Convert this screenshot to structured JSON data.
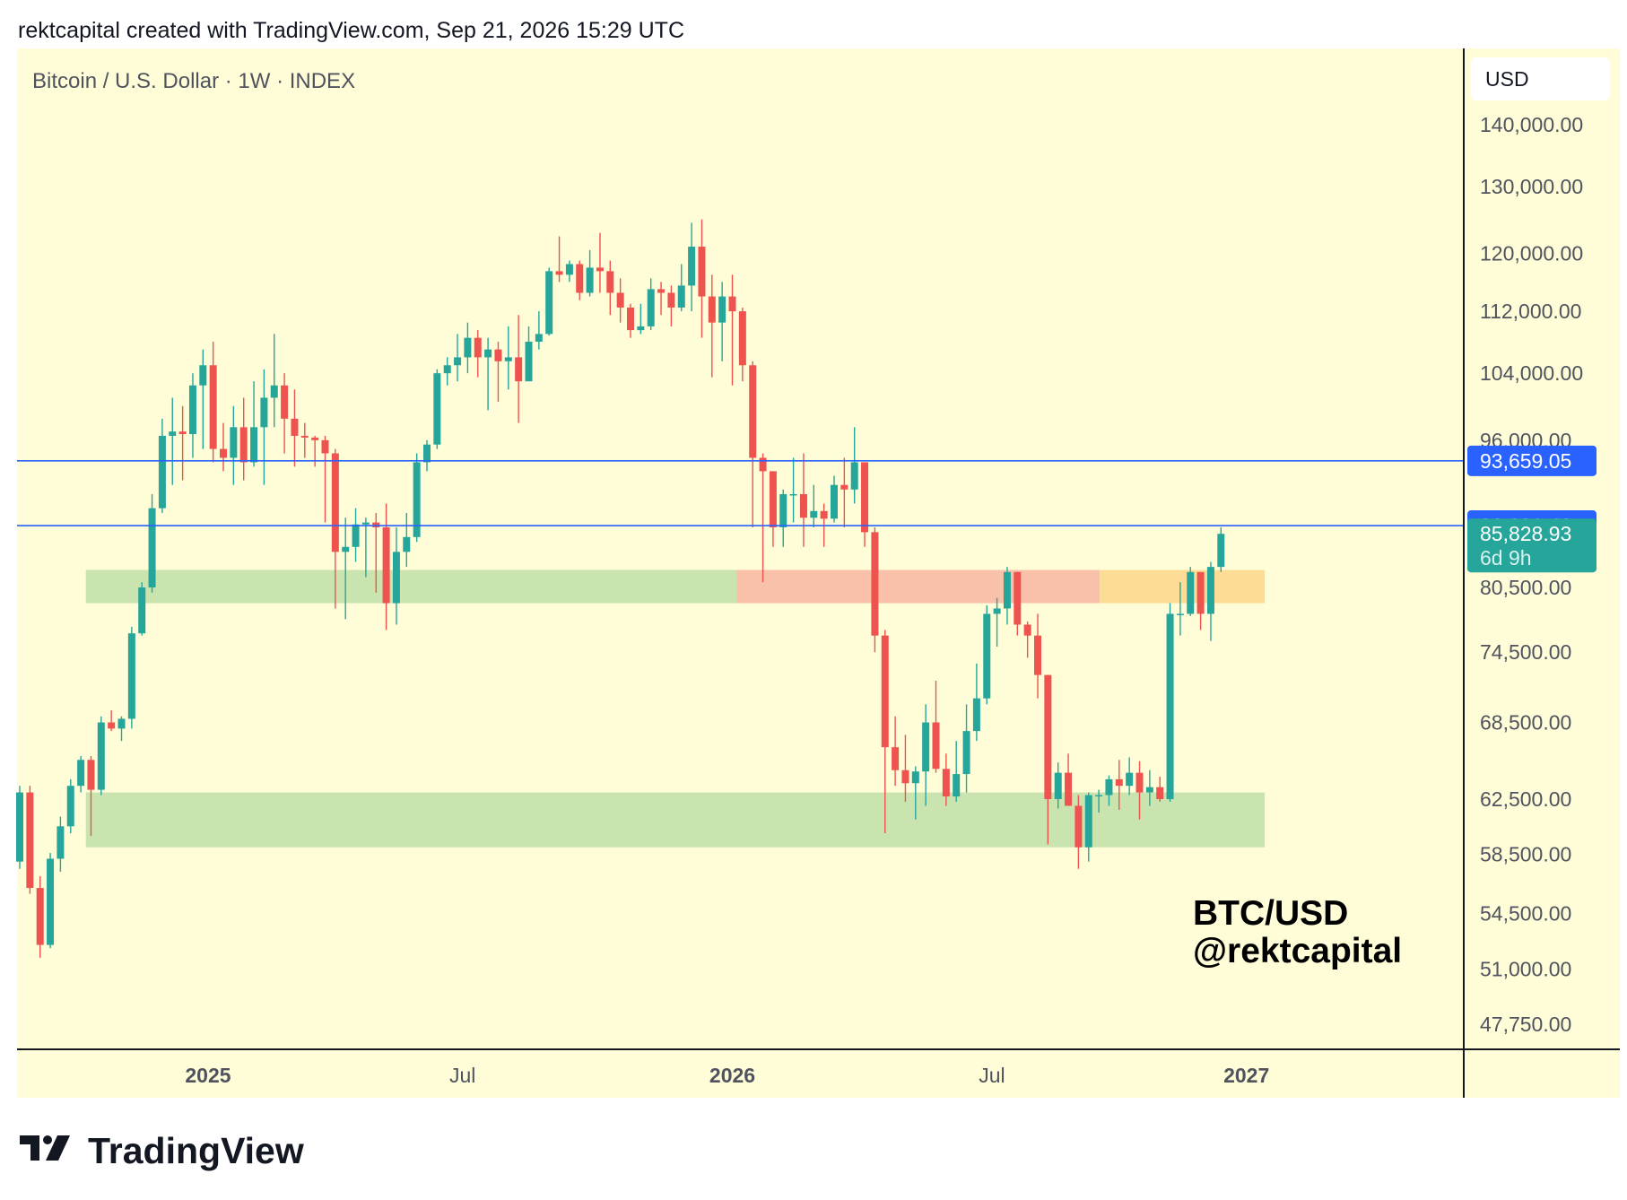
{
  "header": {
    "attribution": "rektcapital created with TradingView.com, Sep 21, 2026 15:29 UTC"
  },
  "chart_header": {
    "symbol": "Bitcoin / U.S. Dollar · 1W · INDEX",
    "currency": "USD"
  },
  "watermark": {
    "line1": "BTC/USD",
    "line2": "@rektcapital"
  },
  "brand": {
    "name": "TradingView"
  },
  "colors": {
    "background": "#fefdd8",
    "up": "#26a69a",
    "down": "#ef5350",
    "level_line": "#2962ff",
    "support_zone": "#c9e4ae",
    "resistance_zone": "#f9c0aa",
    "pending_zone": "#fddd96"
  },
  "chart_data": {
    "type": "candlestick",
    "title": "Bitcoin / U.S. Dollar · 1W · INDEX",
    "timeframe": "1W",
    "ylim": [
      46500,
      148000
    ],
    "y_scale": "log",
    "y_ticks": [
      {
        "value": 140000,
        "label": "140,000.00"
      },
      {
        "value": 130000,
        "label": "130,000.00"
      },
      {
        "value": 120000,
        "label": "120,000.00"
      },
      {
        "value": 112000,
        "label": "112,000.00"
      },
      {
        "value": 104000,
        "label": "104,000.00"
      },
      {
        "value": 96000,
        "label": "96,000.00"
      },
      {
        "value": 80500,
        "label": "80,500.00"
      },
      {
        "value": 74500,
        "label": "74,500.00"
      },
      {
        "value": 68500,
        "label": "68,500.00"
      },
      {
        "value": 62500,
        "label": "62,500.00"
      },
      {
        "value": 58500,
        "label": "58,500.00"
      },
      {
        "value": 54500,
        "label": "54,500.00"
      },
      {
        "value": 51000,
        "label": "51,000.00"
      },
      {
        "value": 47750,
        "label": "47,750.00"
      }
    ],
    "x_ticks": [
      {
        "index": 18.5,
        "label": "2025",
        "bold": true
      },
      {
        "index": 43.5,
        "label": "Jul",
        "bold": false
      },
      {
        "index": 70,
        "label": "2026",
        "bold": true
      },
      {
        "index": 95.5,
        "label": "Jul",
        "bold": false
      },
      {
        "index": 120.5,
        "label": "2027",
        "bold": true
      }
    ],
    "zones": [
      {
        "name": "support",
        "from_index": 6.5,
        "to_index": 70.4,
        "low": 79000,
        "high": 82200
      },
      {
        "name": "resistance",
        "from_index": 70.4,
        "to_index": 106.1,
        "low": 79000,
        "high": 82200
      },
      {
        "name": "pending",
        "from_index": 106.1,
        "to_index": 122.3,
        "low": 79000,
        "high": 82200
      },
      {
        "name": "support",
        "from_index": 6.5,
        "to_index": 122.3,
        "low": 59000,
        "high": 63000
      }
    ],
    "horizontal_lines": [
      {
        "value": 93659.05,
        "label": "93,659.05"
      },
      {
        "value": 86681.46,
        "label": "86,681.46"
      }
    ],
    "last_price": {
      "value": 85828.93,
      "label": "85,828.93",
      "countdown": "6d 9h"
    },
    "candles": [
      [
        58000,
        63000,
        57500,
        63500
      ],
      [
        63000,
        56200,
        55800,
        63500
      ],
      [
        56200,
        52500,
        51700,
        57000
      ],
      [
        52500,
        58200,
        52300,
        58600
      ],
      [
        58200,
        60500,
        57300,
        61200
      ],
      [
        60500,
        63500,
        60000,
        64000
      ],
      [
        63500,
        65500,
        63000,
        65800
      ],
      [
        65500,
        63200,
        59800,
        65800
      ],
      [
        63200,
        68500,
        62800,
        69000
      ],
      [
        68500,
        68000,
        67800,
        69500
      ],
      [
        68000,
        68800,
        67000,
        69000
      ],
      [
        68800,
        76200,
        68000,
        76800
      ],
      [
        76200,
        80500,
        76000,
        81000
      ],
      [
        80500,
        88500,
        80000,
        90000
      ],
      [
        88500,
        96500,
        88000,
        98500
      ],
      [
        96500,
        97000,
        91000,
        101000
      ],
      [
        97000,
        96700,
        91500,
        100000
      ],
      [
        96700,
        102500,
        94000,
        104000
      ],
      [
        102500,
        105000,
        95000,
        107000
      ],
      [
        105000,
        95000,
        93500,
        108000
      ],
      [
        95000,
        94000,
        92500,
        98000
      ],
      [
        94000,
        97500,
        91000,
        100000
      ],
      [
        97500,
        93500,
        91500,
        101000
      ],
      [
        93500,
        97500,
        93000,
        103000
      ],
      [
        97500,
        101000,
        91000,
        104500
      ],
      [
        101000,
        102500,
        97500,
        109000
      ],
      [
        102500,
        98500,
        94500,
        104000
      ],
      [
        98500,
        96500,
        93000,
        102000
      ],
      [
        96500,
        96300,
        94000,
        98000
      ],
      [
        96300,
        96000,
        93000,
        96500
      ],
      [
        96000,
        94500,
        87000,
        96500
      ],
      [
        94500,
        84000,
        78500,
        95000
      ],
      [
        84000,
        84500,
        77500,
        87500
      ],
      [
        84500,
        86800,
        83000,
        88500
      ],
      [
        86800,
        87000,
        81500,
        87500
      ],
      [
        87000,
        86500,
        80000,
        88000
      ],
      [
        86500,
        79000,
        76500,
        89000
      ],
      [
        79000,
        84000,
        77000,
        86500
      ],
      [
        84000,
        85500,
        82500,
        88000
      ],
      [
        85500,
        93500,
        85000,
        94500
      ],
      [
        93500,
        95500,
        92500,
        96000
      ],
      [
        95500,
        104000,
        95000,
        104500
      ],
      [
        104000,
        105000,
        102500,
        106000
      ],
      [
        105000,
        106000,
        103000,
        109000
      ],
      [
        106000,
        108500,
        104000,
        110500
      ],
      [
        108500,
        106000,
        103500,
        109500
      ],
      [
        106000,
        107000,
        99500,
        108500
      ],
      [
        107000,
        105500,
        100500,
        108000
      ],
      [
        105500,
        106000,
        102000,
        110000
      ],
      [
        106000,
        103000,
        98000,
        111500
      ],
      [
        103000,
        108000,
        103000,
        110000
      ],
      [
        108000,
        109000,
        107000,
        112000
      ],
      [
        109000,
        117500,
        108800,
        118000
      ],
      [
        117500,
        117000,
        116000,
        122500
      ],
      [
        117000,
        118500,
        116000,
        119000
      ],
      [
        118500,
        114500,
        113500,
        119000
      ],
      [
        114500,
        118000,
        114000,
        120500
      ],
      [
        118000,
        117500,
        114500,
        123000
      ],
      [
        117500,
        114500,
        111500,
        119000
      ],
      [
        114500,
        112500,
        110500,
        116500
      ],
      [
        112500,
        109500,
        108500,
        113000
      ],
      [
        109500,
        110000,
        109000,
        113000
      ],
      [
        110000,
        115000,
        109500,
        116500
      ],
      [
        115000,
        114500,
        111500,
        116000
      ],
      [
        114500,
        112500,
        110000,
        115500
      ],
      [
        112500,
        115500,
        112000,
        118500
      ],
      [
        115500,
        121000,
        112000,
        124500
      ],
      [
        121000,
        114000,
        108500,
        125000
      ],
      [
        114000,
        110500,
        103500,
        117000
      ],
      [
        110500,
        114000,
        105500,
        116000
      ],
      [
        114000,
        112000,
        102500,
        117000
      ],
      [
        112000,
        105000,
        103000,
        112500
      ],
      [
        105000,
        94000,
        86500,
        105500
      ],
      [
        94000,
        92500,
        81000,
        94500
      ],
      [
        92500,
        86500,
        84500,
        92500
      ],
      [
        86500,
        90000,
        84500,
        90500
      ],
      [
        90000,
        90000,
        87000,
        94000
      ],
      [
        90000,
        87500,
        84500,
        94500
      ],
      [
        87500,
        88200,
        86500,
        91000
      ],
      [
        88200,
        87400,
        84500,
        89000
      ],
      [
        87400,
        91000,
        87000,
        92000
      ],
      [
        91000,
        90500,
        86500,
        94000
      ],
      [
        90500,
        93500,
        89000,
        97500
      ],
      [
        93500,
        86000,
        84500,
        93500
      ],
      [
        86000,
        76000,
        74500,
        86500
      ],
      [
        76000,
        66500,
        60000,
        76500
      ],
      [
        66500,
        64700,
        63500,
        69000
      ],
      [
        64700,
        63700,
        62300,
        67500
      ],
      [
        63700,
        64600,
        61000,
        65000
      ],
      [
        64600,
        68500,
        62000,
        70000
      ],
      [
        68500,
        64800,
        64500,
        72000
      ],
      [
        64800,
        62700,
        62000,
        66000
      ],
      [
        62700,
        64400,
        62300,
        67000
      ],
      [
        64400,
        67800,
        63000,
        70000
      ],
      [
        67800,
        70500,
        67000,
        73500
      ],
      [
        70500,
        78000,
        70000,
        78800
      ],
      [
        78000,
        78500,
        75000,
        79500
      ],
      [
        78500,
        82000,
        77000,
        82500
      ],
      [
        82000,
        77000,
        76000,
        82000
      ],
      [
        77000,
        76000,
        74000,
        77300
      ],
      [
        76000,
        72500,
        70500,
        78000
      ],
      [
        72500,
        62500,
        59200,
        72500
      ],
      [
        62500,
        64500,
        61800,
        65300
      ],
      [
        64500,
        62000,
        62000,
        66000
      ],
      [
        62000,
        59000,
        57500,
        62800
      ],
      [
        59000,
        62800,
        58000,
        63000
      ],
      [
        62800,
        62800,
        61500,
        63200
      ],
      [
        62800,
        64000,
        62000,
        64300
      ],
      [
        64000,
        63500,
        61700,
        65500
      ],
      [
        63500,
        64500,
        62800,
        65700
      ],
      [
        64500,
        63000,
        61000,
        65400
      ],
      [
        63000,
        63400,
        62000,
        64700
      ],
      [
        63400,
        62500,
        62300,
        64200
      ],
      [
        62500,
        78000,
        62300,
        79000
      ],
      [
        78000,
        78000,
        76000,
        81000
      ],
      [
        78000,
        82000,
        77800,
        82500
      ],
      [
        82000,
        78000,
        76500,
        82000
      ],
      [
        78000,
        82500,
        75500,
        83000
      ],
      [
        82500,
        85829,
        82000,
        86500
      ]
    ]
  }
}
